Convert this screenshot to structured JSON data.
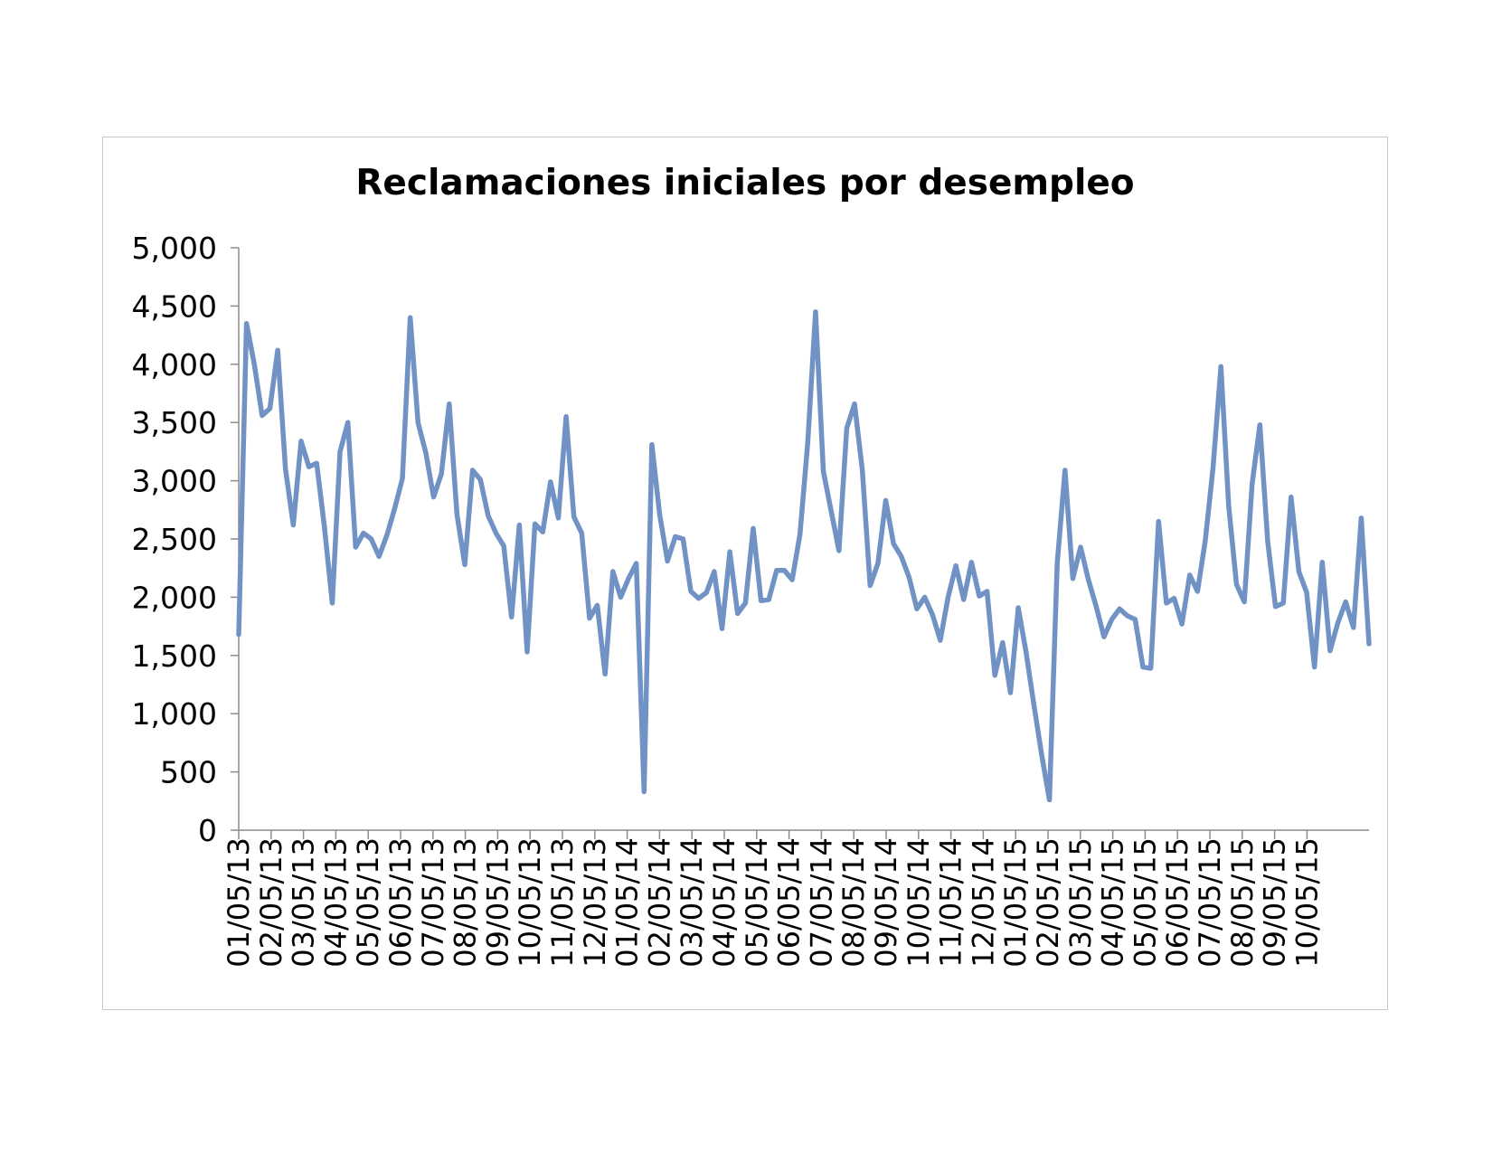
{
  "chart_data": {
    "type": "line",
    "title": "Reclamaciones iniciales por desempleo",
    "xlabel": "",
    "ylabel": "",
    "ylim": [
      0,
      5000
    ],
    "y_ticks": [
      0,
      500,
      1000,
      1500,
      2000,
      2500,
      3000,
      3500,
      4000,
      4500,
      5000
    ],
    "y_tick_labels": [
      "0",
      "500",
      "1,000",
      "1,500",
      "2,000",
      "2,500",
      "3,000",
      "3,500",
      "4,000",
      "4,500",
      "5,000"
    ],
    "x_tick_labels": [
      "01/05/13",
      "02/05/13",
      "03/05/13",
      "04/05/13",
      "05/05/13",
      "06/05/13",
      "07/05/13",
      "08/05/13",
      "09/05/13",
      "10/05/13",
      "11/05/13",
      "12/05/13",
      "01/05/14",
      "02/05/14",
      "03/05/14",
      "04/05/14",
      "05/05/14",
      "06/05/14",
      "07/05/14",
      "08/05/14",
      "09/05/14",
      "10/05/14",
      "11/05/14",
      "12/05/14",
      "01/05/15",
      "02/05/15",
      "03/05/15",
      "04/05/15",
      "05/05/15",
      "06/05/15",
      "07/05/15",
      "08/05/15",
      "09/05/15",
      "10/05/15"
    ],
    "grid": false,
    "legend": "none",
    "line_color": "#7192c4",
    "series": [
      {
        "values": [
          1680,
          4350,
          4000,
          3560,
          3620,
          4120,
          3100,
          2620,
          3340,
          3120,
          3150,
          2600,
          1950,
          3250,
          3500,
          2430,
          2550,
          2500,
          2350,
          2530,
          2760,
          3020,
          4400,
          3500,
          3240,
          2860,
          3060,
          3660,
          2710,
          2280,
          3090,
          3010,
          2700,
          2550,
          2440,
          1830,
          2620,
          1530,
          2630,
          2560,
          2990,
          2680,
          3550,
          2690,
          2550,
          1820,
          1930,
          1340,
          2220,
          2000,
          2160,
          2290,
          330,
          3310,
          2710,
          2310,
          2520,
          2500,
          2050,
          1990,
          2040,
          2220,
          1730,
          2390,
          1860,
          1950,
          2590,
          1970,
          1980,
          2230,
          2230,
          2150,
          2540,
          3330,
          4450,
          3080,
          2740,
          2400,
          3450,
          3660,
          3090,
          2100,
          2290,
          2830,
          2460,
          2350,
          2170,
          1900,
          2000,
          1850,
          1630,
          2000,
          2270,
          1980,
          2300,
          2010,
          2050,
          1330,
          1610,
          1180,
          1910,
          1530,
          1080,
          650,
          260,
          2290,
          3090,
          2160,
          2430,
          2150,
          1920,
          1660,
          1810,
          1900,
          1840,
          1810,
          1400,
          1390,
          2650,
          1950,
          1990,
          1770,
          2190,
          2050,
          2490,
          3120,
          3980,
          2780,
          2110,
          1960,
          2970,
          3480,
          2480,
          1920,
          1950,
          2860,
          2220,
          2040,
          1400,
          2300,
          1540,
          1780,
          1960,
          1740,
          2680,
          1600
        ]
      }
    ]
  }
}
